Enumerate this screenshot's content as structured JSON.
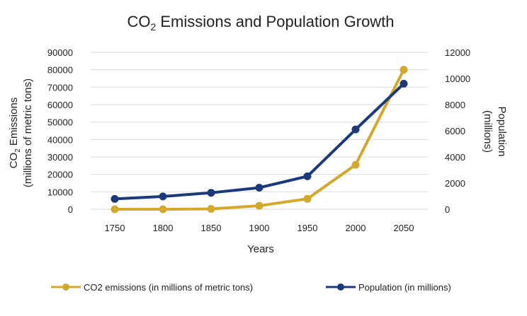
{
  "chart_data": {
    "type": "line",
    "title": {
      "prefix": "CO",
      "subscript": "2",
      "suffix": " Emissions and Population Growth"
    },
    "xlabel": "Years",
    "ylabel_left": {
      "line1_prefix": "CO",
      "line1_subscript": "2",
      "line1_suffix": " Emissions",
      "line2": "(millions of metric tons)"
    },
    "ylabel_right": {
      "line1": "Population",
      "line2": "(millions)"
    },
    "categories": [
      "1750",
      "1800",
      "1850",
      "1900",
      "1950",
      "2000",
      "2050"
    ],
    "y_left": {
      "min": 0,
      "max": 90000,
      "step": 10000,
      "ticks": [
        "0",
        "10000",
        "20000",
        "30000",
        "40000",
        "50000",
        "60000",
        "70000",
        "80000",
        "90000"
      ]
    },
    "y_right": {
      "min": 0,
      "max": 12000,
      "step": 2000,
      "ticks": [
        "0",
        "2000",
        "4000",
        "6000",
        "8000",
        "10000",
        "12000"
      ]
    },
    "grid": true,
    "legend_position": "bottom",
    "series": [
      {
        "name": "CO2 emissions (in millions of metric tons)",
        "axis": "left",
        "color": "#D4A82A",
        "values": [
          0,
          0,
          200,
          2000,
          6000,
          25500,
          80000
        ]
      },
      {
        "name": "Population (in millions)",
        "axis": "right",
        "color": "#1B3A7A",
        "values": [
          790,
          980,
          1260,
          1650,
          2520,
          6100,
          9600
        ]
      }
    ]
  }
}
